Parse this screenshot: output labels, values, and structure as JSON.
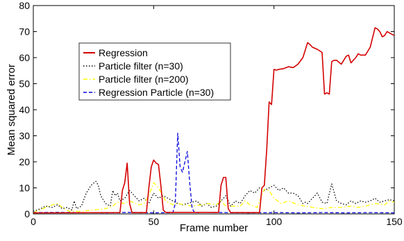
{
  "chart_data": {
    "type": "line",
    "xlabel": "Frame number",
    "ylabel": "Mean squared error",
    "xlim": [
      0,
      150
    ],
    "ylim": [
      0,
      80
    ],
    "xticks": [
      0,
      50,
      100,
      150
    ],
    "yticks": [
      0,
      10,
      20,
      30,
      40,
      50,
      60,
      70,
      80
    ],
    "grid": false,
    "legend_position": "upper-left",
    "series": [
      {
        "name": "Regression",
        "color": "#d40000",
        "style": "solid",
        "x": [
          0,
          36,
          37,
          38,
          39,
          40,
          41,
          47,
          48,
          49,
          50,
          51,
          52,
          53,
          54,
          55,
          77,
          78,
          79,
          80,
          81,
          82,
          83,
          84,
          94,
          95,
          96,
          97,
          98,
          99,
          100,
          101,
          102,
          104,
          106,
          108,
          110,
          112,
          114,
          115,
          116,
          118,
          120,
          121,
          122,
          123,
          124,
          125,
          126,
          128,
          130,
          131,
          132,
          134,
          135,
          136,
          138,
          140,
          142,
          143,
          144,
          145,
          146,
          147,
          148,
          149,
          150
        ],
        "y": [
          0.4,
          0.5,
          9,
          12,
          19.5,
          4,
          0.5,
          0.5,
          10,
          18,
          20.7,
          19.5,
          19,
          11,
          1.5,
          0.6,
          0.6,
          11,
          14,
          14,
          2,
          0.5,
          0.5,
          0.5,
          0.5,
          10,
          11,
          25,
          43,
          42,
          55.5,
          55.2,
          55.5,
          55.8,
          56.5,
          56.2,
          57.5,
          60,
          65.8,
          65,
          64,
          63.2,
          62,
          46,
          46.5,
          46,
          58.5,
          59,
          59,
          57.5,
          60.5,
          61,
          58,
          60,
          61.5,
          61,
          61,
          64,
          71.5,
          71,
          70,
          68,
          68.5,
          70,
          69.5,
          69,
          68.5
        ]
      },
      {
        "name": "Particle filter (n=30)",
        "color": "#000000",
        "style": "dotted",
        "x": [
          0,
          3,
          5,
          8,
          10,
          12,
          14,
          16,
          17,
          18,
          20,
          22,
          24,
          26,
          27,
          28,
          30,
          32,
          33,
          34,
          35,
          36,
          38,
          40,
          42,
          44,
          46,
          48,
          50,
          52,
          54,
          56,
          58,
          60,
          62,
          64,
          66,
          68,
          70,
          72,
          74,
          76,
          78,
          80,
          82,
          84,
          86,
          88,
          90,
          92,
          94,
          96,
          98,
          100,
          102,
          104,
          106,
          108,
          110,
          112,
          113,
          114,
          116,
          118,
          120,
          122,
          124,
          126,
          128,
          130,
          132,
          134,
          136,
          138,
          140,
          142,
          144,
          146,
          148,
          150
        ],
        "y": [
          1,
          2,
          3,
          2.5,
          3.5,
          2,
          2.5,
          1.5,
          5,
          2,
          3,
          8,
          11,
          12.5,
          11,
          7,
          4,
          3,
          9,
          7,
          8,
          5,
          6,
          9,
          7,
          5,
          6,
          4,
          8,
          6,
          7,
          6,
          5,
          4,
          3.5,
          4,
          4.5,
          5,
          3,
          4,
          2.5,
          3,
          5,
          7,
          3,
          5,
          4,
          7,
          9,
          8,
          10,
          9,
          10,
          11,
          9,
          10,
          8,
          8,
          7,
          4,
          4.5,
          4,
          6,
          8,
          4.5,
          4,
          11.5,
          5,
          4,
          3.5,
          5,
          4,
          5,
          4.5,
          5,
          6,
          4.5,
          5,
          5.5,
          5
        ]
      },
      {
        "name": "Particle filter (n=200)",
        "color": "#ffff00",
        "style": "dashdot",
        "x": [
          0,
          4,
          6,
          8,
          10,
          12,
          15,
          20,
          25,
          30,
          33,
          35,
          38,
          40,
          44,
          46,
          48,
          50,
          52,
          55,
          58,
          60,
          63,
          66,
          70,
          73,
          76,
          78,
          80,
          83,
          86,
          88,
          90,
          93,
          96,
          98,
          100,
          103,
          106,
          110,
          113,
          116,
          120,
          124,
          128,
          132,
          135,
          138,
          142,
          146,
          148,
          150
        ],
        "y": [
          0.5,
          2,
          3,
          3.5,
          4,
          2.5,
          1,
          1,
          1.5,
          2,
          3,
          4.5,
          4,
          5,
          3.5,
          4,
          7,
          12,
          10,
          5,
          3.5,
          4,
          3.5,
          3,
          3.5,
          4,
          3.5,
          5,
          3,
          3,
          3,
          5,
          3.5,
          2.5,
          9.5,
          9,
          6,
          4,
          5,
          3.5,
          3,
          2.5,
          2,
          2.5,
          2.5,
          3,
          2.5,
          3,
          4,
          3.5,
          5,
          4.5
        ]
      },
      {
        "name": "Regression Particle (n=30)",
        "color": "#0000dd",
        "style": "dashed",
        "x": [
          0,
          10,
          20,
          30,
          40,
          50,
          58,
          59,
          60,
          61,
          62,
          63,
          64,
          65,
          66,
          67,
          68,
          70,
          80,
          90,
          100,
          110,
          120,
          130,
          140,
          150
        ],
        "y": [
          0.5,
          0.6,
          0.5,
          0.4,
          0.6,
          0.4,
          0.5,
          4,
          31,
          18,
          16,
          20,
          24,
          12,
          2,
          0.6,
          0.5,
          0.6,
          0.5,
          0.4,
          0.5,
          0.4,
          0.5,
          0.4,
          0.5,
          0.4
        ]
      }
    ]
  }
}
